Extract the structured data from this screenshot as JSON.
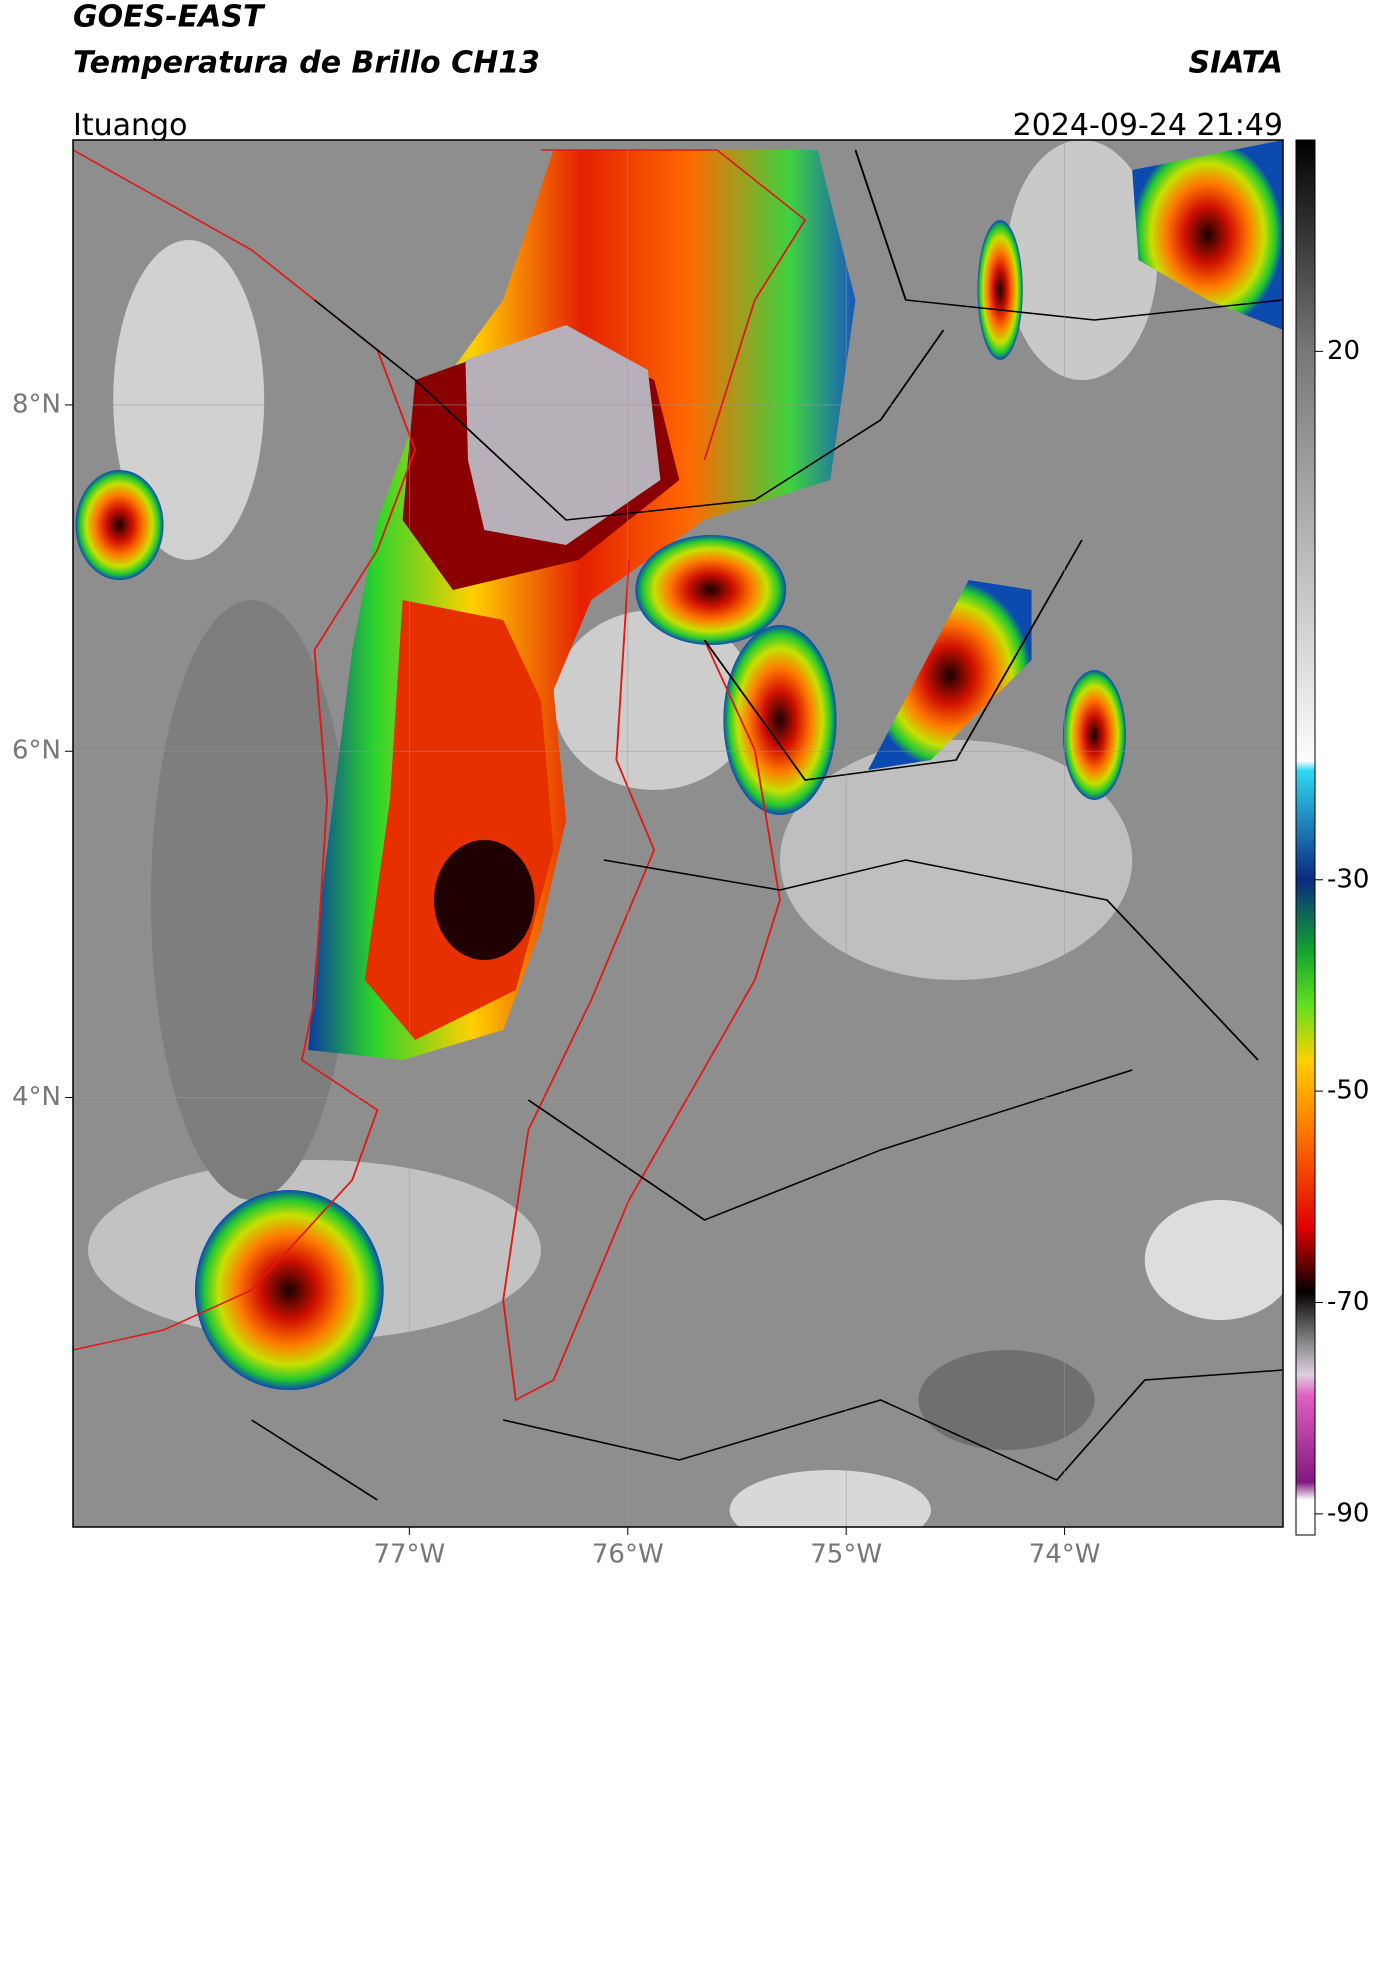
{
  "header": {
    "title": "GOES-EAST",
    "subtitle": "Temperatura de Brillo CH13",
    "source": "SIATA",
    "location": "Ituango",
    "datetime": "2024-09-24 21:49"
  },
  "map": {
    "xlim": [
      -78.54,
      -73.0
    ],
    "ylim": [
      1.52,
      9.53
    ],
    "xticks": [
      {
        "value": -77,
        "label": "77°W"
      },
      {
        "value": -76,
        "label": "76°W"
      },
      {
        "value": -75,
        "label": "75°W"
      },
      {
        "value": -74,
        "label": "74°W"
      }
    ],
    "yticks": [
      {
        "value": 8,
        "label": "8°N"
      },
      {
        "value": 6,
        "label": "6°N"
      },
      {
        "value": 4,
        "label": "4°N"
      }
    ]
  },
  "colorbar": {
    "clim": [
      -92,
      40
    ],
    "ticks": [
      20,
      -30,
      -50,
      -70,
      -90
    ]
  }
}
